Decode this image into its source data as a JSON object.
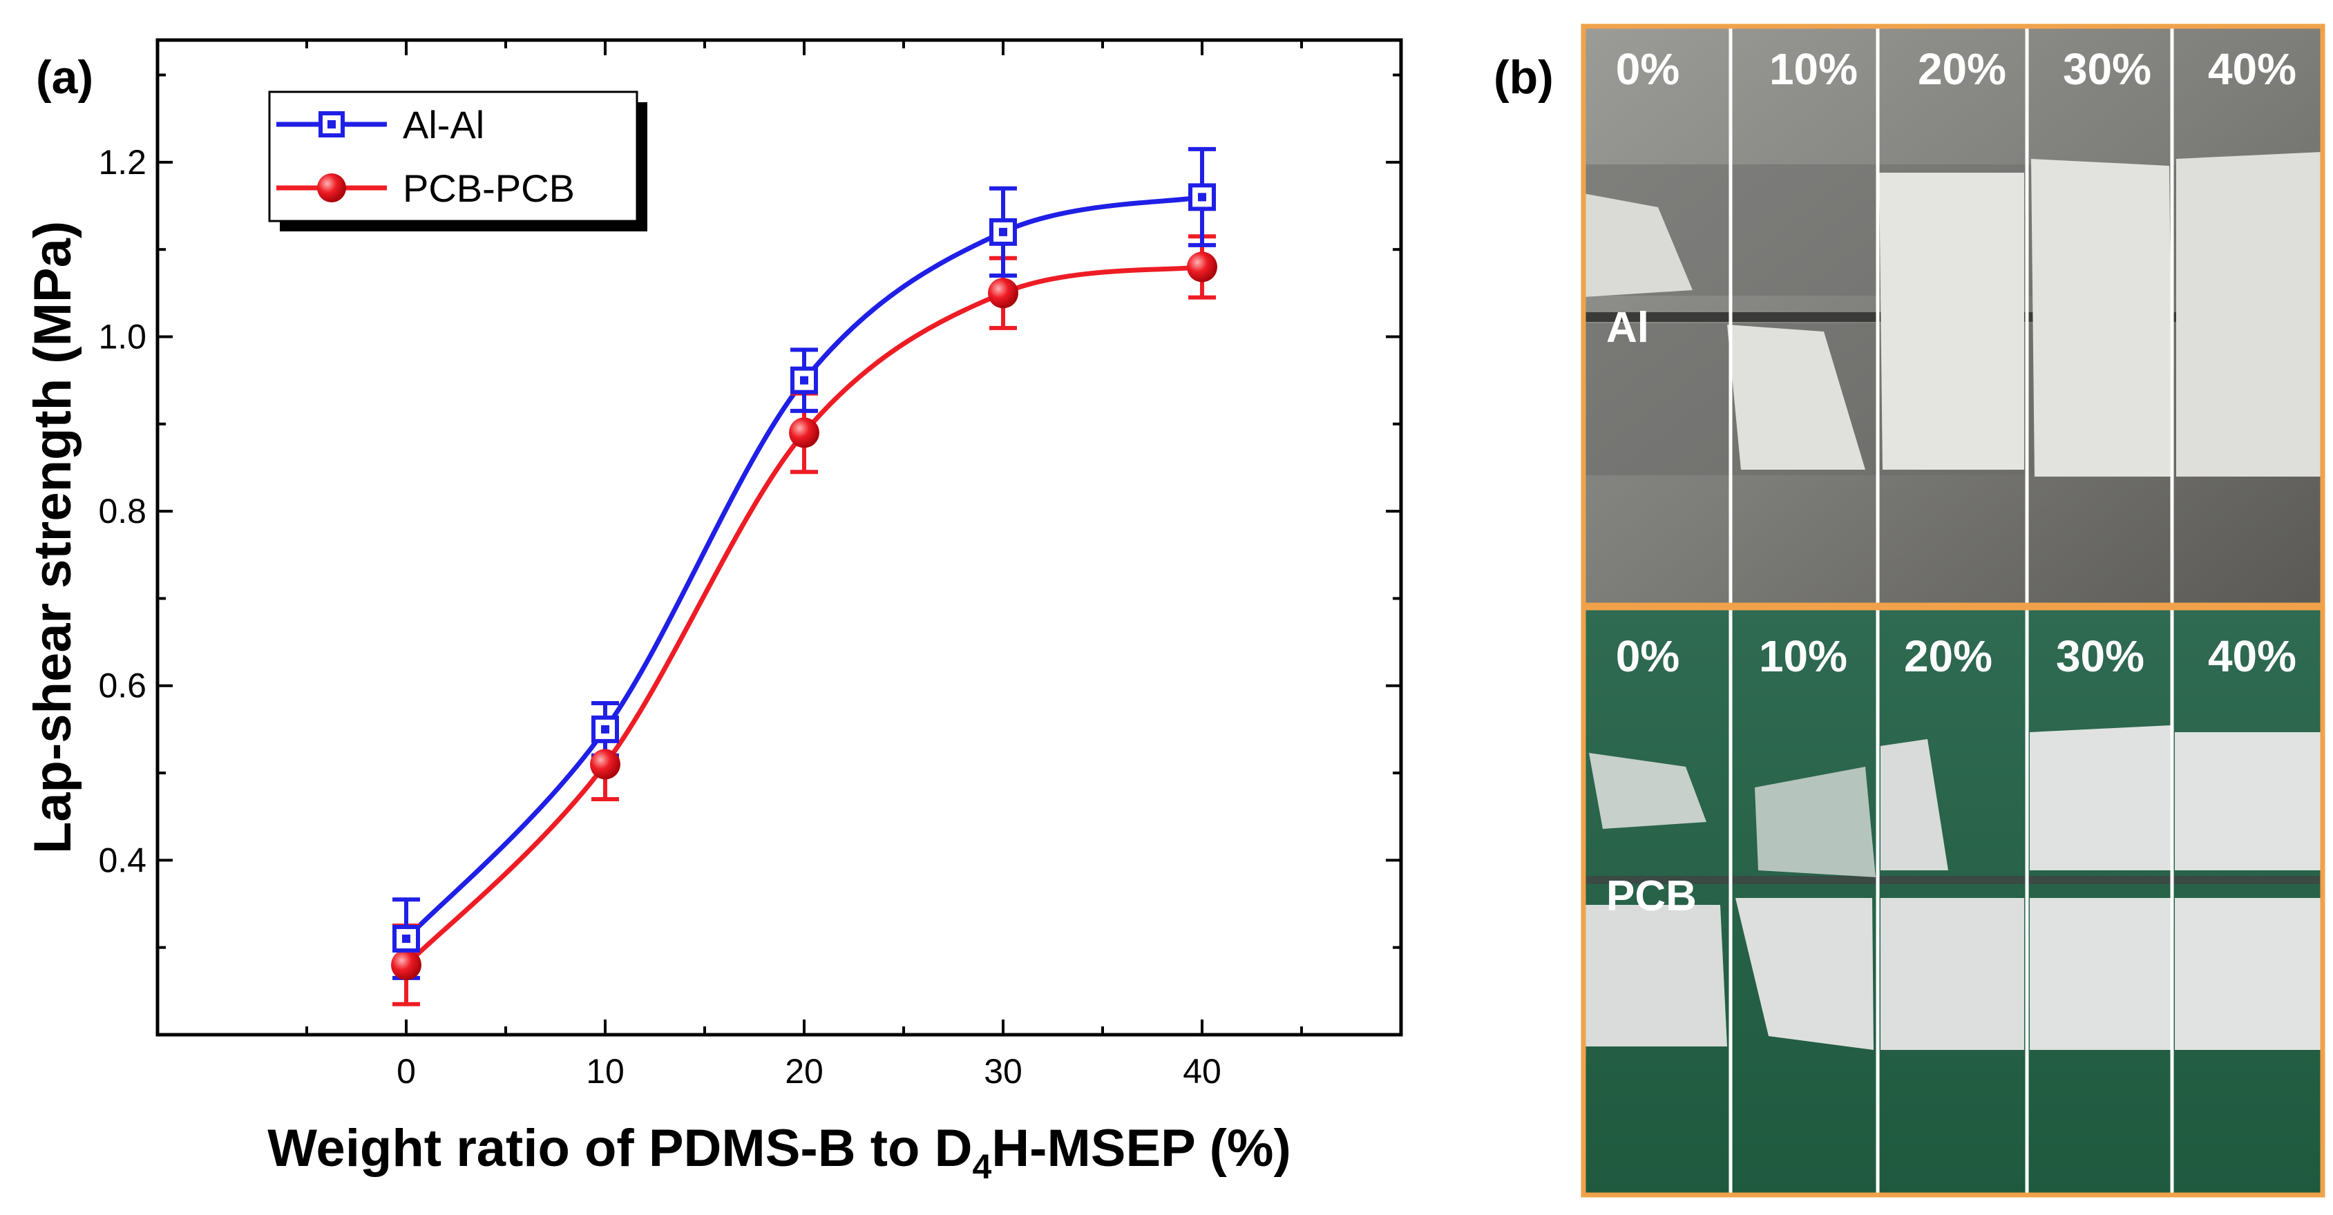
{
  "panel_a_label": "(a)",
  "panel_b_label": "(b)",
  "chart_data": {
    "type": "line",
    "title": "",
    "xlabel_parts": [
      "Weight ratio of PDMS-B to D",
      "4",
      "H-MSEP (%)"
    ],
    "ylabel": "Lap-shear strength (MPa)",
    "xlim": [
      -12.5,
      50
    ],
    "ylim": [
      0.2,
      1.34
    ],
    "x_ticks": [
      0,
      10,
      20,
      30,
      40
    ],
    "y_ticks": [
      0.4,
      0.6,
      0.8,
      1.0,
      1.2
    ],
    "y_tick_labels": [
      "0.4",
      "0.6",
      "0.8",
      "1.0",
      "1.2"
    ],
    "legend_position": "top-left",
    "series": [
      {
        "name": "Al-Al",
        "color": "#1f1fe6",
        "marker": "open-square",
        "x": [
          0,
          10,
          20,
          30,
          40
        ],
        "y": [
          0.31,
          0.55,
          0.95,
          1.12,
          1.16
        ],
        "err": [
          0.045,
          0.03,
          0.035,
          0.05,
          0.055
        ]
      },
      {
        "name": "PCB-PCB",
        "color": "#ee1c24",
        "marker": "filled-circle",
        "x": [
          0,
          10,
          20,
          30,
          40
        ],
        "y": [
          0.28,
          0.51,
          0.89,
          1.05,
          1.08
        ],
        "err": [
          0.045,
          0.04,
          0.045,
          0.04,
          0.035
        ]
      }
    ]
  },
  "photos": {
    "border_color": "#f0a24b",
    "top": {
      "substrate_label": "Al",
      "columns": [
        "0%",
        "10%",
        "20%",
        "30%",
        "40%"
      ]
    },
    "bottom": {
      "substrate_label": "PCB",
      "columns": [
        "0%",
        "10%",
        "20%",
        "30%",
        "40%"
      ]
    }
  }
}
